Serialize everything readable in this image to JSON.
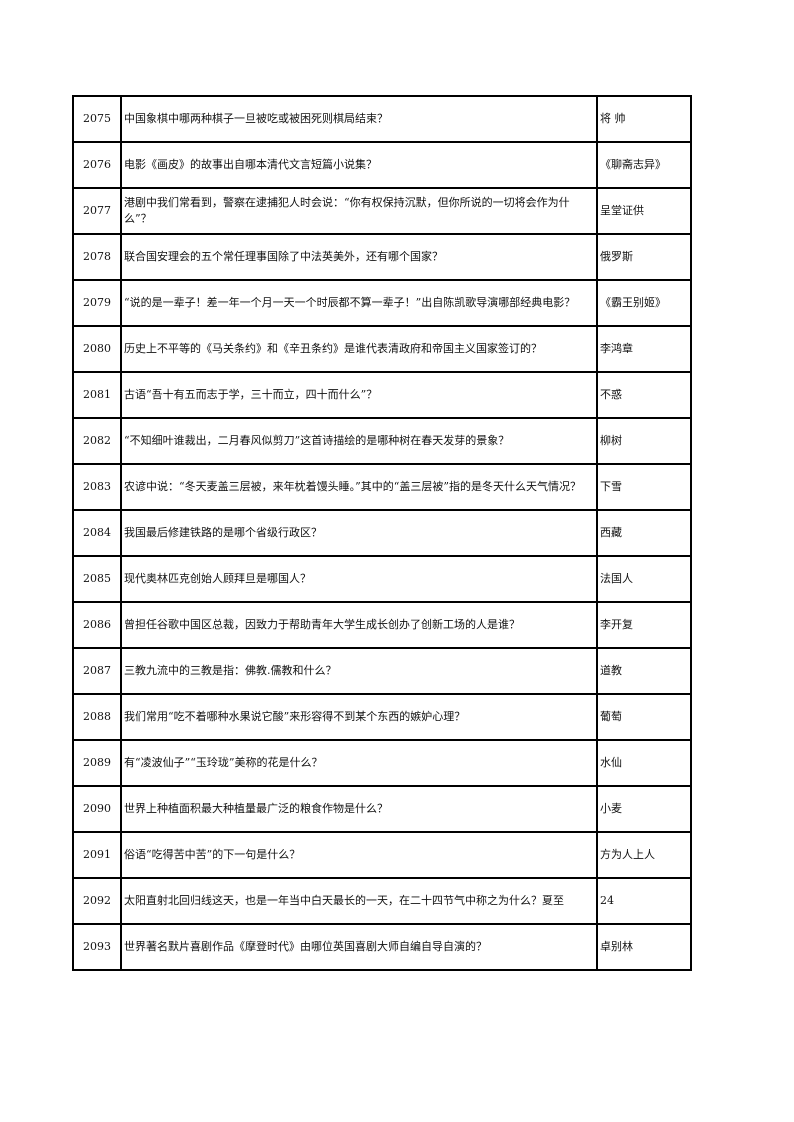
{
  "rows": [
    {
      "no": "2075",
      "question": "中国象棋中哪两种棋子一旦被吃或被困死则棋局结束？",
      "answer": "将 帅"
    },
    {
      "no": "2076",
      "question": "电影《画皮》的故事出自哪本清代文言短篇小说集？",
      "answer": "《聊斋志异》"
    },
    {
      "no": "2077",
      "question": "港剧中我们常看到，警察在逮捕犯人时会说：“你有权保持沉默，但你所说的一切将会作为什么”？",
      "answer": "呈堂证供"
    },
    {
      "no": "2078",
      "question": "联合国安理会的五个常任理事国除了中法英美外，还有哪个国家？",
      "answer": "俄罗斯"
    },
    {
      "no": "2079",
      "question": "“说的是一辈子！差一年一个月一天一个时辰都不算一辈子！”出自陈凯歌导演哪部经典电影？",
      "answer": "《霸王别姬》"
    },
    {
      "no": "2080",
      "question": "历史上不平等的《马关条约》和《辛丑条约》是谁代表清政府和帝国主义国家签订的？",
      "answer": "李鸿章"
    },
    {
      "no": "2081",
      "question": "古语“吾十有五而志于学，三十而立，四十而什么”？",
      "answer": "不惑"
    },
    {
      "no": "2082",
      "question": "“不知细叶谁裁出，二月春风似剪刀”这首诗描绘的是哪种树在春天发芽的景象？",
      "answer": "柳树"
    },
    {
      "no": "2083",
      "question": "农谚中说：“冬天麦盖三层被，来年枕着馒头睡。”其中的“盖三层被”指的是冬天什么天气情况？",
      "answer": "下雪"
    },
    {
      "no": "2084",
      "question": "我国最后修建铁路的是哪个省级行政区？",
      "answer": "西藏"
    },
    {
      "no": "2085",
      "question": "现代奥林匹克创始人顾拜旦是哪国人？",
      "answer": "法国人"
    },
    {
      "no": "2086",
      "question": "曾担任谷歌中国区总裁，因致力于帮助青年大学生成长创办了创新工场的人是谁？",
      "answer": "李开复"
    },
    {
      "no": "2087",
      "question": "三教九流中的三教是指：佛教.儒教和什么？",
      "answer": "道教"
    },
    {
      "no": "2088",
      "question": "我们常用“吃不着哪种水果说它酸”来形容得不到某个东西的嫉妒心理？",
      "answer": "葡萄"
    },
    {
      "no": "2089",
      "question": "有“凌波仙子”“玉玲珑”美称的花是什么？",
      "answer": "水仙"
    },
    {
      "no": "2090",
      "question": "世界上种植面积最大种植量最广泛的粮食作物是什么？",
      "answer": "小麦"
    },
    {
      "no": "2091",
      "question": "俗语“吃得苦中苦”的下一句是什么？",
      "answer": "方为人上人"
    },
    {
      "no": "2092",
      "question": "太阳直射北回归线这天，也是一年当中白天最长的一天，在二十四节气中称之为什么？夏至",
      "answer": "24"
    },
    {
      "no": "2093",
      "question": "世界著名默片喜剧作品《摩登时代》由哪位英国喜剧大师自编自导自演的？",
      "answer": "卓别林"
    }
  ]
}
